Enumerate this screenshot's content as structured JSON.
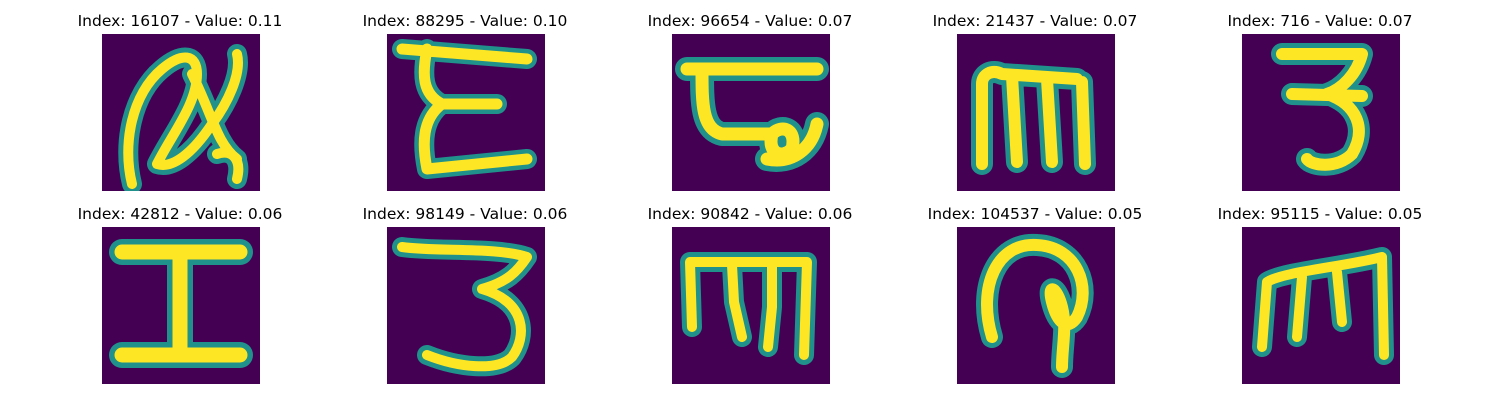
{
  "colors": {
    "background": "#440154",
    "glyph_core": "#fde725",
    "glyph_mid": "#5ec962",
    "glyph_edge": "#21918c"
  },
  "panels": [
    {
      "title": "Index: 16107 - Value: 0.11",
      "glyph": "script-a"
    },
    {
      "title": "Index: 88295 - Value: 0.10",
      "glyph": "epsilon"
    },
    {
      "title": "Index: 96654 - Value: 0.07",
      "glyph": "tau-like"
    },
    {
      "title": "Index: 21437 - Value: 0.07",
      "glyph": "m"
    },
    {
      "title": "Index: 716 - Value: 0.07",
      "glyph": "three"
    },
    {
      "title": "Index: 42812 - Value: 0.06",
      "glyph": "capital-i"
    },
    {
      "title": "Index: 98149 - Value: 0.06",
      "glyph": "three"
    },
    {
      "title": "Index: 90842 - Value: 0.06",
      "glyph": "m"
    },
    {
      "title": "Index: 104537 - Value: 0.05",
      "glyph": "hook-p"
    },
    {
      "title": "Index: 95115 - Value: 0.05",
      "glyph": "m"
    }
  ]
}
